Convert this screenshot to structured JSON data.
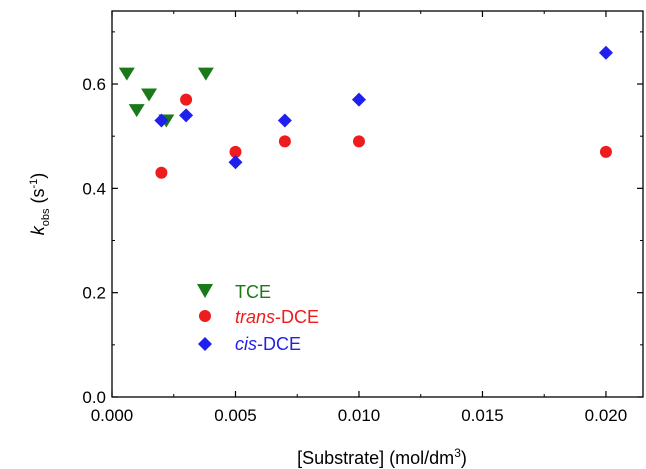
{
  "chart_data": {
    "type": "scatter",
    "xlabel": {
      "prefix": "[Substrate] (mol/dm",
      "sup": "3",
      "suffix": ")"
    },
    "ylabel": {
      "var": "k",
      "sub": "obs",
      "mid": " (s",
      "sup": "-1",
      "end": ")"
    },
    "xlim": [
      0.0,
      0.0215
    ],
    "ylim": [
      0.0,
      0.74
    ],
    "x_ticks": [
      0.0,
      0.005,
      0.01,
      0.015,
      0.02
    ],
    "x_tick_labels": [
      "0.000",
      "0.005",
      "0.010",
      "0.015",
      "0.020"
    ],
    "y_ticks": [
      0.0,
      0.2,
      0.4,
      0.6
    ],
    "y_tick_labels": [
      "0.0",
      "0.2",
      "0.4",
      "0.6"
    ],
    "grid": false,
    "legend_position": "lower-left",
    "series": [
      {
        "id": "tce",
        "legend": {
          "italic": "",
          "rest": "TCE"
        },
        "marker": "triangle-down",
        "color": "#1a7a1a",
        "points": [
          [
            0.0006,
            0.62
          ],
          [
            0.001,
            0.55
          ],
          [
            0.0015,
            0.58
          ],
          [
            0.0022,
            0.53
          ],
          [
            0.0038,
            0.62
          ]
        ]
      },
      {
        "id": "trans-dce",
        "legend": {
          "italic": "trans",
          "rest": "-DCE"
        },
        "marker": "circle",
        "color": "#ee1c1c",
        "points": [
          [
            0.002,
            0.43
          ],
          [
            0.003,
            0.57
          ],
          [
            0.005,
            0.47
          ],
          [
            0.007,
            0.49
          ],
          [
            0.01,
            0.49
          ],
          [
            0.02,
            0.47
          ]
        ]
      },
      {
        "id": "cis-dce",
        "legend": {
          "italic": "cis",
          "rest": "-DCE"
        },
        "marker": "diamond",
        "color": "#1f1fee",
        "points": [
          [
            0.002,
            0.53
          ],
          [
            0.003,
            0.54
          ],
          [
            0.005,
            0.45
          ],
          [
            0.007,
            0.53
          ],
          [
            0.01,
            0.57
          ],
          [
            0.02,
            0.66
          ]
        ]
      }
    ]
  }
}
